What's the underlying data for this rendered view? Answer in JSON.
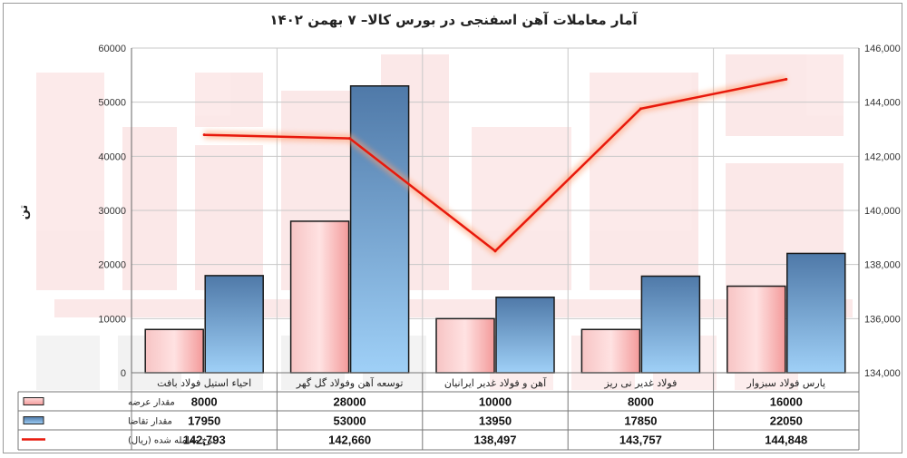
{
  "chart_data": {
    "type": "bar",
    "title": "آمار معاملات آهن اسفنجی در بورس کالا– ۷ بهمن ۱۴۰۲",
    "ylabel": "تن",
    "categories": [
      "احیاء استیل فولاد بافت",
      "توسعه آهن وفولاد گل گهر",
      "آهن و فولاد غدیر ایرانیان",
      "فولاد غدیر نی ریز",
      "پارس فولاد سبزوار"
    ],
    "series": [
      {
        "name": "مقدار عرضه",
        "type": "bar",
        "axis": "left",
        "values": [
          8000,
          28000,
          10000,
          8000,
          16000
        ],
        "display": [
          "8000",
          "28000",
          "10000",
          "8000",
          "16000"
        ],
        "color": "#f4a6a6"
      },
      {
        "name": "مقدار تقاضا",
        "type": "bar",
        "axis": "left",
        "values": [
          17950,
          53000,
          13950,
          17850,
          22050
        ],
        "display": [
          "17950",
          "53000",
          "13950",
          "17850",
          "22050"
        ],
        "color": "#5f8fc4"
      },
      {
        "name": "نرخ معامله شده (ریال)",
        "type": "line",
        "axis": "right",
        "values": [
          142793,
          142660,
          138497,
          143757,
          144848
        ],
        "display": [
          "142,793",
          "142,660",
          "138,497",
          "143,757",
          "144,848"
        ],
        "color": "#e8190c"
      }
    ],
    "ylim": [
      0,
      60000
    ],
    "yticks": [
      "0",
      "10000",
      "20000",
      "30000",
      "40000",
      "50000",
      "60000"
    ],
    "y2lim": [
      134000,
      146000
    ],
    "y2ticks": [
      "134,000",
      "136,000",
      "138,000",
      "140,000",
      "142,000",
      "144,000",
      "146,000"
    ],
    "grid": true,
    "legend": "data-table"
  }
}
